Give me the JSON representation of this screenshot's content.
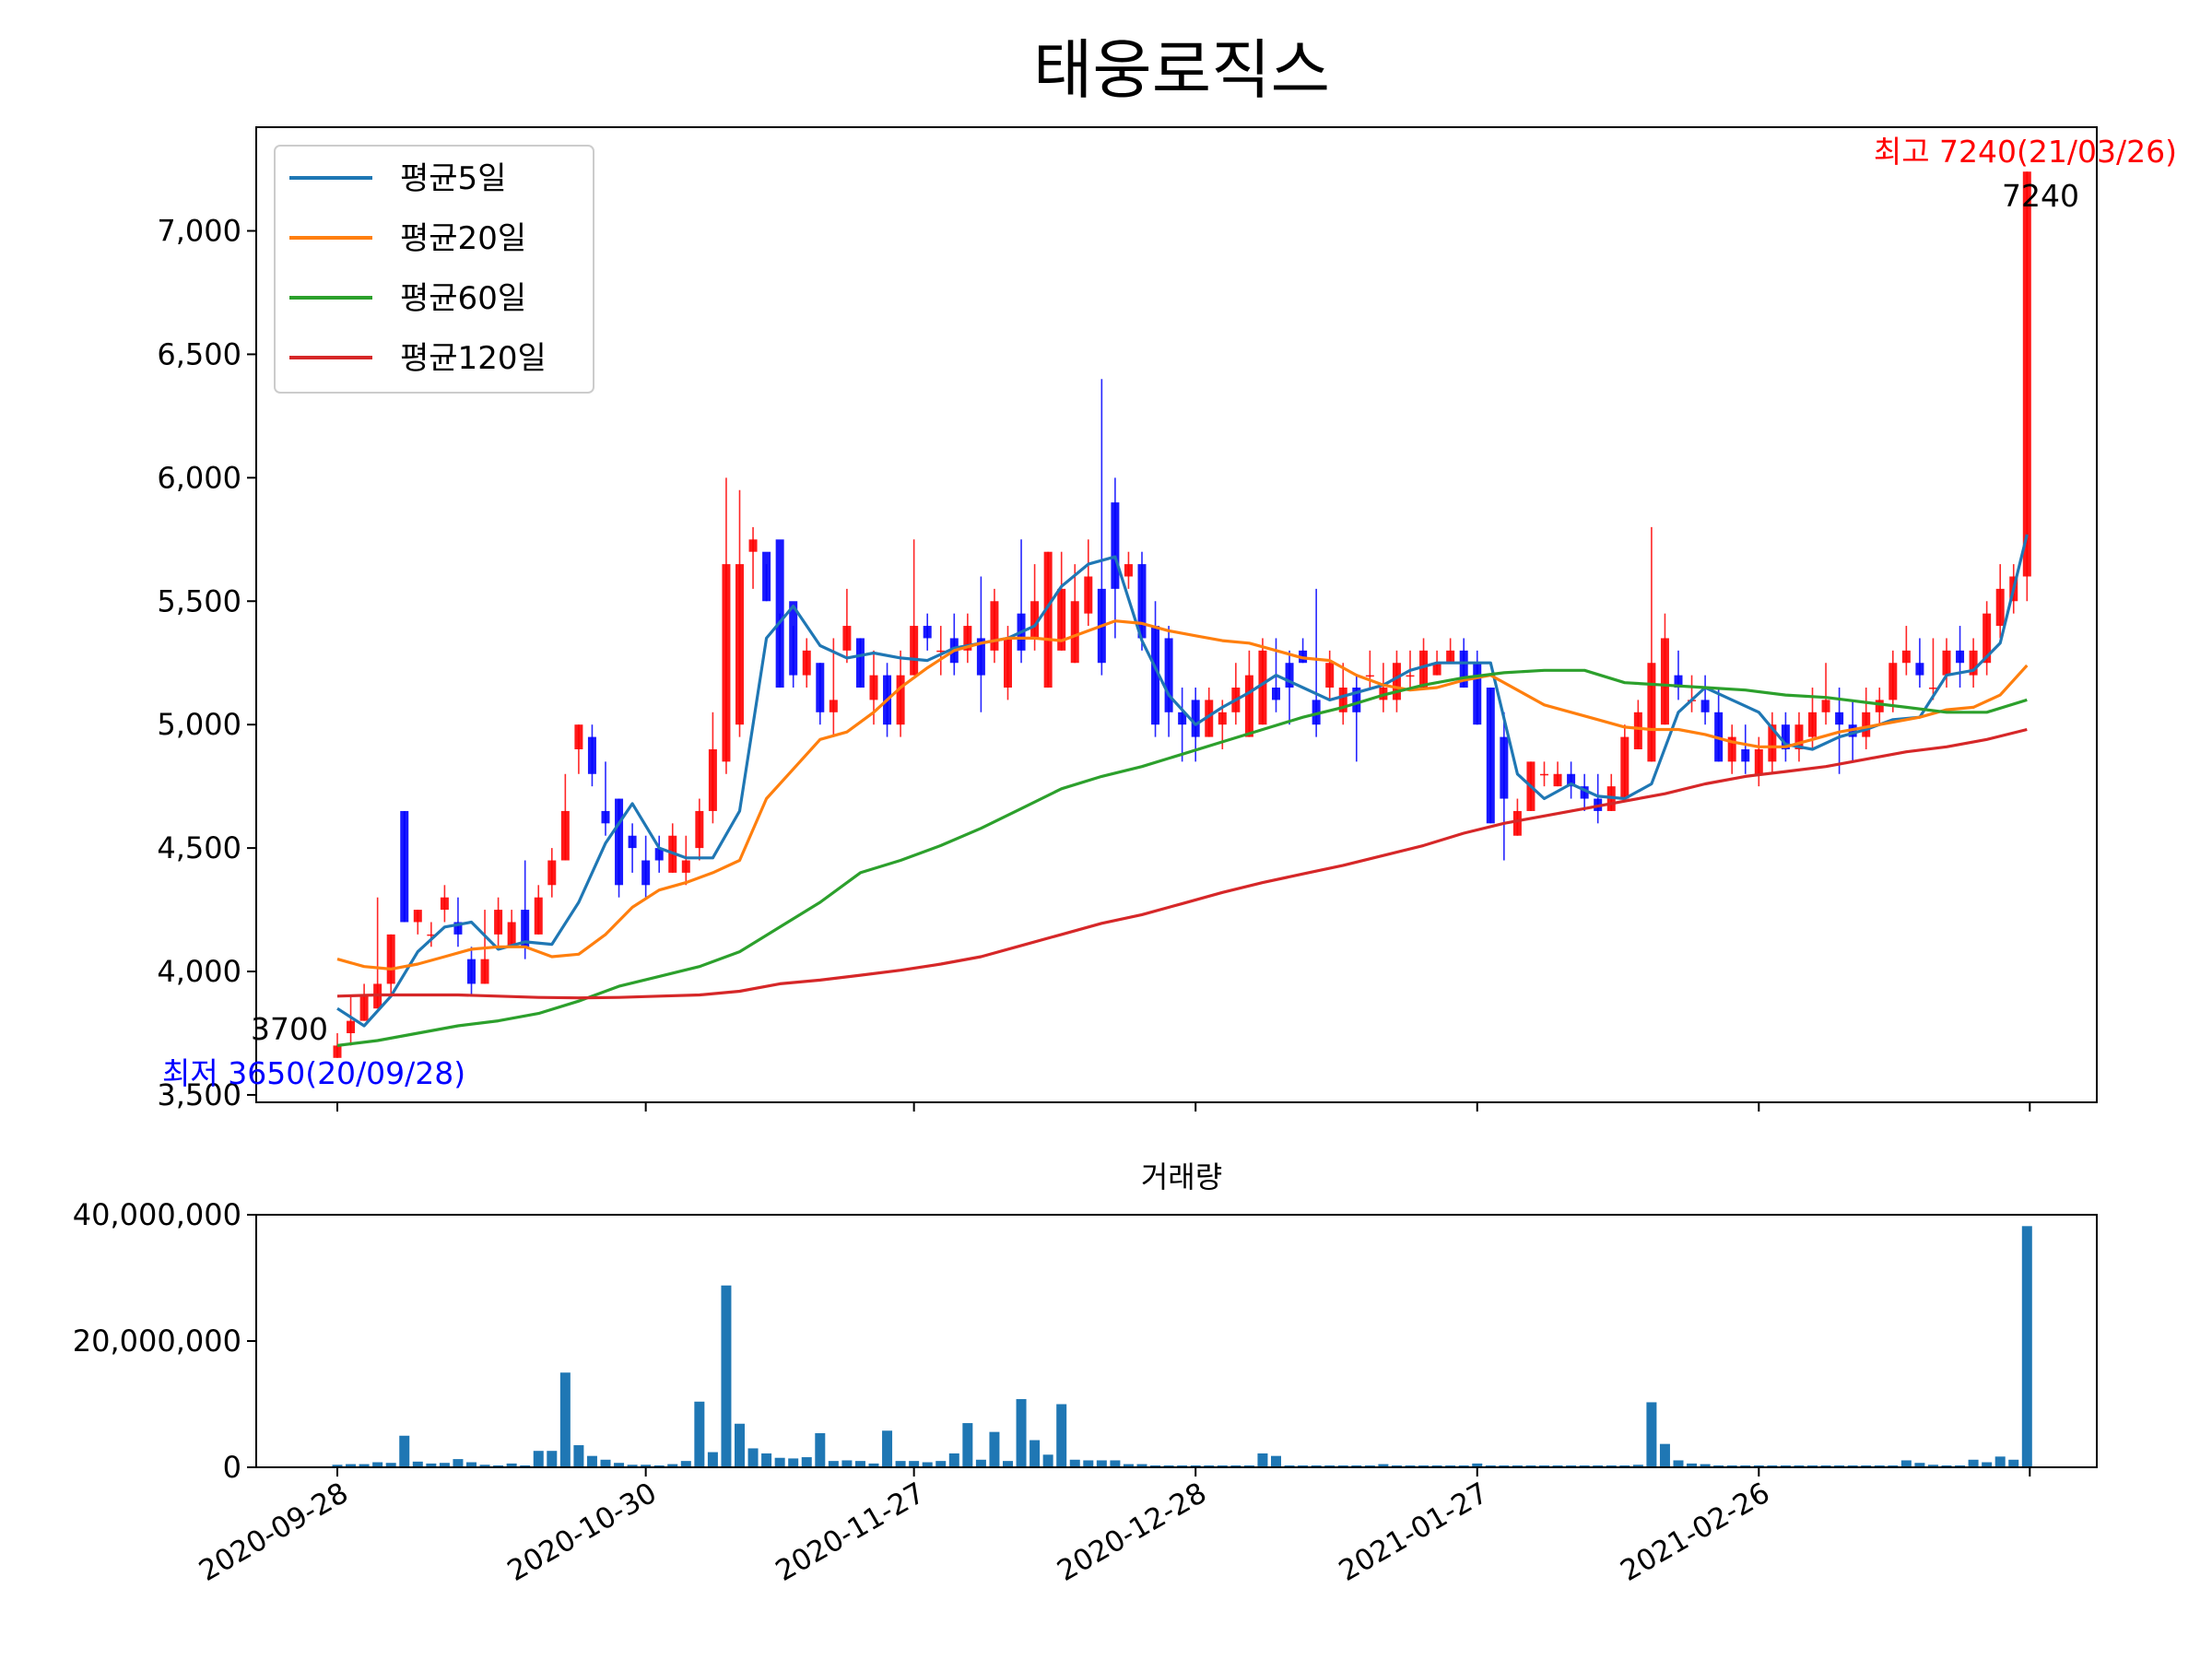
{
  "chart_data": [
    {
      "type": "candlestick",
      "title": "태웅로직스",
      "ylim": [
        3470,
        7420
      ],
      "yticks": [
        3500,
        4000,
        4500,
        5000,
        5500,
        6000,
        6500,
        7000
      ],
      "ytick_labels": [
        "3,500",
        "4,000",
        "4,500",
        "5,000",
        "5,500",
        "6,000",
        "6,500",
        "7,000"
      ],
      "xticks": [
        {
          "index": 0,
          "label": "2020-09-28"
        },
        {
          "index": 23,
          "label": "2020-10-30"
        },
        {
          "index": 43,
          "label": "2020-11-27"
        },
        {
          "index": 64,
          "label": "2020-12-28"
        },
        {
          "index": 85,
          "label": "2021-01-27"
        },
        {
          "index": 106,
          "label": "2021-02-26"
        }
      ],
      "candles": {
        "open": [
          3650,
          3750,
          3800,
          3850,
          3950,
          4650,
          4200,
          4150,
          4250,
          4200,
          4050,
          3950,
          4150,
          4100,
          4250,
          4150,
          4350,
          4450,
          4900,
          4950,
          4650,
          4700,
          4550,
          4450,
          4500,
          4400,
          4400,
          4500,
          4650,
          4850,
          5000,
          5700,
          5700,
          5750,
          5500,
          5200,
          5250,
          5050,
          5300,
          5350,
          5100,
          5200,
          5000,
          5200,
          5400,
          5300,
          5350,
          5300,
          5350,
          5300,
          5150,
          5450,
          5350,
          5150,
          5300,
          5250,
          5450,
          5550,
          5900,
          5600,
          5650,
          5400,
          5350,
          5050,
          5100,
          4950,
          5000,
          5050,
          4950,
          5000,
          5150,
          5250,
          5300,
          5100,
          5150,
          5050,
          5150,
          5200,
          5100,
          5100,
          5200,
          5150,
          5200,
          5250,
          5300,
          5250,
          5150,
          4950,
          4550,
          4650,
          4800,
          4750,
          4800,
          4750,
          4700,
          4650,
          4700,
          4900,
          4850,
          5000,
          5200,
          5100,
          5100,
          5050,
          4850,
          4900,
          4800,
          4850,
          5000,
          4900,
          4950,
          5050,
          5050,
          5000,
          4950,
          5050,
          5100,
          5250,
          5250,
          5150,
          5200,
          5300,
          5200,
          5250,
          5400,
          5500,
          5600
        ],
        "close": [
          3700,
          3800,
          3900,
          3950,
          4150,
          4200,
          4250,
          4150,
          4300,
          4150,
          3950,
          4050,
          4250,
          4200,
          4100,
          4300,
          4450,
          4650,
          5000,
          4800,
          4600,
          4350,
          4500,
          4350,
          4450,
          4550,
          4450,
          4650,
          4900,
          5650,
          5650,
          5750,
          5500,
          5150,
          5200,
          5300,
          5050,
          5100,
          5400,
          5150,
          5200,
          5000,
          5200,
          5400,
          5350,
          5300,
          5250,
          5400,
          5200,
          5500,
          5350,
          5300,
          5500,
          5700,
          5550,
          5500,
          5600,
          5250,
          5550,
          5650,
          5350,
          5000,
          5050,
          5000,
          4950,
          5100,
          5050,
          5150,
          5200,
          5300,
          5100,
          5150,
          5250,
          5000,
          5250,
          5150,
          5050,
          5200,
          5150,
          5250,
          5200,
          5300,
          5250,
          5300,
          5150,
          5000,
          4600,
          4700,
          4650,
          4850,
          4800,
          4800,
          4750,
          4700,
          4650,
          4750,
          4950,
          5050,
          5250,
          5350,
          5150,
          5100,
          5050,
          4850,
          4950,
          4850,
          4900,
          5000,
          4900,
          5000,
          5050,
          5100,
          5000,
          4950,
          5050,
          5100,
          5250,
          5300,
          5200,
          5150,
          5300,
          5250,
          5300,
          5450,
          5550,
          5600,
          7240
        ],
        "high": [
          3750,
          3900,
          3950,
          4300,
          4150,
          4650,
          4250,
          4200,
          4350,
          4300,
          4100,
          4250,
          4300,
          4250,
          4450,
          4350,
          4500,
          4800,
          5000,
          5000,
          4850,
          4700,
          4600,
          4550,
          4550,
          4600,
          4550,
          4700,
          5050,
          6000,
          5950,
          5800,
          5650,
          5450,
          5400,
          5350,
          5250,
          5350,
          5550,
          5350,
          5300,
          5250,
          5300,
          5750,
          5450,
          5400,
          5450,
          5450,
          5600,
          5550,
          5400,
          5750,
          5650,
          5700,
          5700,
          5650,
          5750,
          6400,
          6000,
          5700,
          5700,
          5500,
          5400,
          5150,
          5150,
          5150,
          5100,
          5250,
          5300,
          5350,
          5350,
          5300,
          5350,
          5550,
          5300,
          5250,
          5200,
          5300,
          5250,
          5300,
          5300,
          5350,
          5300,
          5350,
          5350,
          5300,
          5150,
          5050,
          4700,
          4850,
          4850,
          4850,
          4850,
          4800,
          4800,
          4800,
          5000,
          5100,
          5800,
          5450,
          5300,
          5200,
          5200,
          5150,
          5000,
          5000,
          4950,
          5050,
          5050,
          5050,
          5150,
          5250,
          5150,
          5100,
          5150,
          5150,
          5300,
          5400,
          5350,
          5350,
          5350,
          5400,
          5350,
          5500,
          5650,
          5650,
          7240
        ],
        "low": [
          3650,
          3700,
          3800,
          3850,
          3900,
          4200,
          4150,
          4100,
          4200,
          4100,
          3900,
          3950,
          4100,
          4100,
          4050,
          4150,
          4300,
          4450,
          4800,
          4750,
          4550,
          4300,
          4400,
          4300,
          4400,
          4400,
          4350,
          4450,
          4600,
          4800,
          4950,
          5550,
          5500,
          5150,
          5150,
          5150,
          5000,
          4950,
          5250,
          5150,
          5000,
          4950,
          4950,
          5200,
          5300,
          5200,
          5200,
          5250,
          5050,
          5250,
          5100,
          5250,
          5300,
          5150,
          5300,
          5250,
          5400,
          5200,
          5350,
          5550,
          5300,
          4950,
          4950,
          4850,
          4850,
          4950,
          4900,
          5000,
          4950,
          5000,
          5050,
          5000,
          5250,
          4950,
          5100,
          5000,
          4850,
          5150,
          5050,
          5050,
          5150,
          5150,
          5200,
          5250,
          5150,
          5000,
          4600,
          4450,
          4550,
          4650,
          4750,
          4750,
          4700,
          4650,
          4600,
          4650,
          4700,
          4900,
          4850,
          5000,
          5100,
          5050,
          5000,
          4850,
          4800,
          4800,
          4750,
          4800,
          4850,
          4850,
          4900,
          5000,
          4800,
          4850,
          4900,
          5000,
          5050,
          5200,
          5150,
          5100,
          5150,
          5150,
          5150,
          5200,
          5350,
          5450,
          5500
        ]
      },
      "series": [
        {
          "name": "평균5일",
          "color": "#1f77b4",
          "x": [
            0,
            2,
            4,
            6,
            8,
            10,
            12,
            14,
            16,
            18,
            20,
            22,
            24,
            26,
            28,
            30,
            32,
            34,
            36,
            38,
            40,
            42,
            44,
            46,
            48,
            50,
            52,
            54,
            56,
            58,
            60,
            62,
            64,
            66,
            68,
            70,
            72,
            74,
            76,
            78,
            80,
            82,
            84,
            86,
            88,
            90,
            92,
            94,
            96,
            98,
            100,
            102,
            104,
            106,
            108,
            110,
            112,
            114,
            116,
            118,
            120,
            122,
            124,
            126
          ],
          "y": [
            3850,
            3780,
            3900,
            4080,
            4180,
            4200,
            4090,
            4120,
            4110,
            4280,
            4520,
            4680,
            4500,
            4460,
            4460,
            4650,
            5350,
            5480,
            5320,
            5270,
            5290,
            5270,
            5260,
            5310,
            5330,
            5350,
            5400,
            5560,
            5650,
            5680,
            5340,
            5120,
            5000,
            5070,
            5130,
            5200,
            5150,
            5100,
            5130,
            5160,
            5220,
            5250,
            5250,
            5250,
            4800,
            4700,
            4760,
            4710,
            4700,
            4760,
            5050,
            5150,
            5100,
            5050,
            4920,
            4900,
            4950,
            4980,
            5020,
            5030,
            5200,
            5220,
            5330,
            5770
          ]
        },
        {
          "name": "평균20일",
          "color": "#ff7f0e",
          "x": [
            0,
            2,
            4,
            6,
            8,
            10,
            12,
            14,
            16,
            18,
            20,
            22,
            24,
            26,
            28,
            30,
            32,
            34,
            36,
            38,
            40,
            42,
            44,
            46,
            48,
            50,
            52,
            54,
            56,
            58,
            60,
            62,
            64,
            66,
            68,
            70,
            72,
            74,
            76,
            78,
            80,
            82,
            84,
            86,
            88,
            90,
            92,
            94,
            96,
            98,
            100,
            102,
            104,
            106,
            108,
            110,
            112,
            114,
            116,
            118,
            120,
            122,
            124,
            126
          ],
          "y": [
            4050,
            4020,
            4010,
            4030,
            4060,
            4090,
            4100,
            4100,
            4060,
            4070,
            4150,
            4260,
            4330,
            4360,
            4400,
            4450,
            4700,
            4820,
            4940,
            4970,
            5050,
            5150,
            5230,
            5300,
            5330,
            5350,
            5350,
            5340,
            5380,
            5420,
            5410,
            5380,
            5360,
            5340,
            5330,
            5300,
            5270,
            5260,
            5200,
            5160,
            5140,
            5150,
            5180,
            5200,
            5140,
            5080,
            5050,
            5020,
            4990,
            4980,
            4980,
            4960,
            4930,
            4910,
            4910,
            4940,
            4970,
            4990,
            5010,
            5030,
            5060,
            5070,
            5120,
            5240
          ]
        },
        {
          "name": "평균60일",
          "color": "#2ca02c",
          "x": [
            0,
            3,
            6,
            9,
            12,
            15,
            18,
            21,
            24,
            27,
            30,
            33,
            36,
            39,
            42,
            45,
            48,
            51,
            54,
            57,
            60,
            63,
            66,
            69,
            72,
            75,
            78,
            81,
            84,
            87,
            90,
            93,
            96,
            99,
            102,
            105,
            108,
            111,
            114,
            117,
            120,
            123,
            126
          ],
          "y": [
            3700,
            3720,
            3750,
            3780,
            3800,
            3830,
            3880,
            3940,
            3980,
            4020,
            4080,
            4180,
            4280,
            4400,
            4450,
            4510,
            4580,
            4660,
            4740,
            4790,
            4830,
            4880,
            4930,
            4980,
            5030,
            5070,
            5120,
            5160,
            5190,
            5210,
            5220,
            5220,
            5170,
            5160,
            5150,
            5140,
            5120,
            5110,
            5090,
            5070,
            5050,
            5050,
            5100
          ]
        },
        {
          "name": "평균120일",
          "color": "#d62728",
          "x": [
            0,
            3,
            6,
            9,
            12,
            15,
            18,
            21,
            24,
            27,
            30,
            33,
            36,
            39,
            42,
            45,
            48,
            51,
            54,
            57,
            60,
            63,
            66,
            69,
            72,
            75,
            78,
            81,
            84,
            87,
            90,
            93,
            96,
            99,
            102,
            105,
            108,
            111,
            114,
            117,
            120,
            123,
            126
          ],
          "y": [
            3900,
            3905,
            3905,
            3905,
            3900,
            3895,
            3893,
            3895,
            3900,
            3905,
            3920,
            3950,
            3965,
            3985,
            4005,
            4030,
            4060,
            4105,
            4150,
            4195,
            4230,
            4275,
            4320,
            4360,
            4395,
            4430,
            4470,
            4510,
            4560,
            4600,
            4630,
            4660,
            4690,
            4720,
            4760,
            4790,
            4810,
            4830,
            4860,
            4890,
            4910,
            4940,
            4980
          ]
        }
      ],
      "legend": "upper-left",
      "annotations": {
        "max_label": "최고 7240(21/03/26)",
        "max_value": "7240",
        "min_label": "최저 3650(20/09/28)",
        "start_value": "3700"
      }
    },
    {
      "type": "bar",
      "title": "거래량",
      "ylim": [
        0,
        40000000
      ],
      "yticks": [
        0,
        20000000,
        40000000
      ],
      "ytick_labels": [
        "0",
        "20,000,000",
        "40,000,000"
      ],
      "values": [
        400000,
        500000,
        500000,
        800000,
        700000,
        5000000,
        900000,
        600000,
        700000,
        1300000,
        800000,
        400000,
        300000,
        600000,
        300000,
        2600000,
        2600000,
        15000000,
        3500000,
        1800000,
        1200000,
        700000,
        400000,
        400000,
        300000,
        500000,
        1000000,
        10400000,
        2400000,
        28800000,
        6900000,
        3000000,
        2200000,
        1500000,
        1400000,
        1600000,
        5400000,
        1000000,
        1100000,
        1000000,
        600000,
        5800000,
        1000000,
        1000000,
        800000,
        1000000,
        2200000,
        7000000,
        1200000,
        5600000,
        1000000,
        10800000,
        4300000,
        2000000,
        10000000,
        1200000,
        1100000,
        1100000,
        1100000,
        500000,
        500000,
        300000,
        300000,
        300000,
        300000,
        300000,
        300000,
        300000,
        300000,
        2200000,
        1800000,
        300000,
        300000,
        300000,
        300000,
        300000,
        300000,
        300000,
        500000,
        300000,
        300000,
        300000,
        300000,
        300000,
        300000,
        600000,
        300000,
        300000,
        300000,
        300000,
        300000,
        300000,
        300000,
        300000,
        300000,
        300000,
        300000,
        400000,
        10300000,
        3700000,
        1100000,
        600000,
        500000,
        300000,
        300000,
        300000,
        300000,
        300000,
        300000,
        300000,
        300000,
        300000,
        300000,
        300000,
        300000,
        300000,
        300000,
        1100000,
        700000,
        400000,
        300000,
        300000,
        1200000,
        800000,
        1700000,
        1200000,
        38200000
      ]
    }
  ]
}
